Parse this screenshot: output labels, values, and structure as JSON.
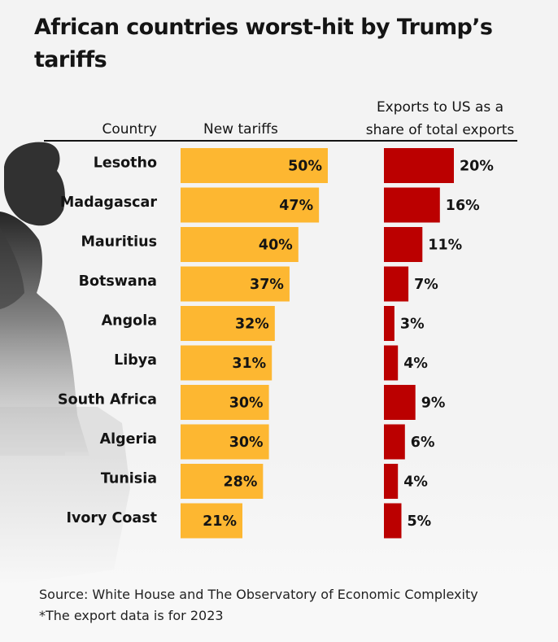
{
  "title": "African countries worst-hit by Trump’s tariffs",
  "headers": {
    "country": "Country",
    "tariffs": "New tariffs",
    "exports_line1": "Exports to US as a",
    "exports_line2": "share of total exports"
  },
  "colors": {
    "tariff_bar": "#fdb731",
    "export_bar": "#bb0000",
    "text": "#141414",
    "background": "#f3f3f3"
  },
  "footer": {
    "source": "Source: White House and The Observatory of Economic Complexity",
    "note": "*The export data is for 2023"
  },
  "chart_data": {
    "type": "bar",
    "orientation": "horizontal",
    "title": "African countries worst-hit by Trump’s tariffs",
    "categories": [
      "Lesotho",
      "Madagascar",
      "Mauritius",
      "Botswana",
      "Angola",
      "Libya",
      "South Africa",
      "Algeria",
      "Tunisia",
      "Ivory Coast"
    ],
    "series": [
      {
        "name": "New tariffs",
        "unit": "%",
        "values": [
          50,
          47,
          40,
          37,
          32,
          31,
          30,
          30,
          28,
          21
        ],
        "labels": [
          "50%",
          "47%",
          "40%",
          "37%",
          "32%",
          "31%",
          "30%",
          "30%",
          "28%",
          "21%"
        ],
        "color": "#fdb731",
        "label_position": "inside-end"
      },
      {
        "name": "Exports to US as a share of total exports",
        "unit": "%",
        "values": [
          20,
          16,
          11,
          7,
          3,
          4,
          9,
          6,
          4,
          5
        ],
        "labels": [
          "20%",
          "16%",
          "11%",
          "7%",
          "3%",
          "4%",
          "9%",
          "6%",
          "4%",
          "5%"
        ],
        "color": "#bb0000",
        "label_position": "outside-end"
      }
    ],
    "grid": false,
    "legend": "none",
    "notes": [
      "Source: White House and The Observatory of Economic Complexity",
      "*The export data is for 2023"
    ]
  }
}
